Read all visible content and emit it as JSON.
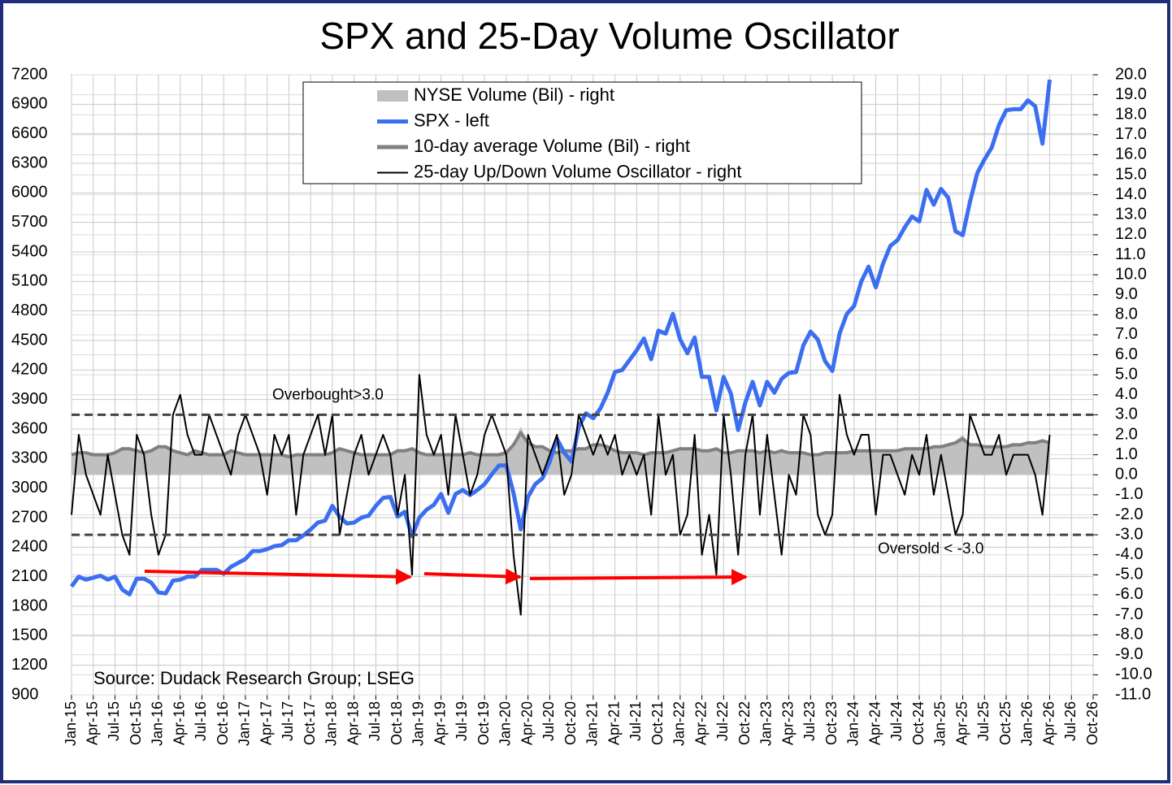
{
  "chart_data": {
    "type": "line",
    "title": "SPX and 25-Day Volume Oscillator",
    "source": "Source: Dudack Research Group;  LSEG",
    "xlim": [
      "2015-01",
      "2026-10"
    ],
    "xticks": [
      {
        "value": "2015-01",
        "label": "Jan-15"
      },
      {
        "value": "2015-04",
        "label": "Apr-15"
      },
      {
        "value": "2015-07",
        "label": "Jul-15"
      },
      {
        "value": "2015-10",
        "label": "Oct-15"
      },
      {
        "value": "2016-01",
        "label": "Jan-16"
      },
      {
        "value": "2016-04",
        "label": "Apr-16"
      },
      {
        "value": "2016-07",
        "label": "Jul-16"
      },
      {
        "value": "2016-10",
        "label": "Oct-16"
      },
      {
        "value": "2017-01",
        "label": "Jan-17"
      },
      {
        "value": "2017-04",
        "label": "Apr-17"
      },
      {
        "value": "2017-07",
        "label": "Jul-17"
      },
      {
        "value": "2017-10",
        "label": "Oct-17"
      },
      {
        "value": "2018-01",
        "label": "Jan-18"
      },
      {
        "value": "2018-04",
        "label": "Apr-18"
      },
      {
        "value": "2018-07",
        "label": "Jul-18"
      },
      {
        "value": "2018-10",
        "label": "Oct-18"
      },
      {
        "value": "2019-01",
        "label": "Jan-19"
      },
      {
        "value": "2019-04",
        "label": "Apr-19"
      },
      {
        "value": "2019-07",
        "label": "Jul-19"
      },
      {
        "value": "2019-10",
        "label": "Oct-19"
      },
      {
        "value": "2020-01",
        "label": "Jan-20"
      },
      {
        "value": "2020-04",
        "label": "Apr-20"
      },
      {
        "value": "2020-07",
        "label": "Jul-20"
      },
      {
        "value": "2020-10",
        "label": "Oct-20"
      },
      {
        "value": "2021-01",
        "label": "Jan-21"
      },
      {
        "value": "2021-04",
        "label": "Apr-21"
      },
      {
        "value": "2021-07",
        "label": "Jul-21"
      },
      {
        "value": "2021-10",
        "label": "Oct-21"
      },
      {
        "value": "2022-01",
        "label": "Jan-22"
      },
      {
        "value": "2022-04",
        "label": "Apr-22"
      },
      {
        "value": "2022-07",
        "label": "Jul-22"
      },
      {
        "value": "2022-10",
        "label": "Oct-22"
      },
      {
        "value": "2023-01",
        "label": "Jan-23"
      },
      {
        "value": "2023-04",
        "label": "Apr-23"
      },
      {
        "value": "2023-07",
        "label": "Jul-23"
      },
      {
        "value": "2023-10",
        "label": "Oct-23"
      },
      {
        "value": "2024-01",
        "label": "Jan-24"
      },
      {
        "value": "2024-04",
        "label": "Apr-24"
      },
      {
        "value": "2024-07",
        "label": "Jul-24"
      },
      {
        "value": "2024-10",
        "label": "Oct-24"
      },
      {
        "value": "2025-01",
        "label": "Jan-25"
      },
      {
        "value": "2025-04",
        "label": "Apr-25"
      },
      {
        "value": "2025-07",
        "label": "Jul-25"
      },
      {
        "value": "2025-10",
        "label": "Oct-25"
      },
      {
        "value": "2026-01",
        "label": "Jan-26"
      },
      {
        "value": "2026-04",
        "label": "Apr-26"
      },
      {
        "value": "2026-07",
        "label": "Jul-26"
      },
      {
        "value": "2026-10",
        "label": "Oct-26"
      }
    ],
    "ylim": [
      900,
      7200
    ],
    "yticks": [
      900,
      1200,
      1500,
      1800,
      2100,
      2400,
      2700,
      3000,
      3300,
      3600,
      3900,
      4200,
      4500,
      4800,
      5100,
      5400,
      5700,
      6000,
      6300,
      6600,
      6900,
      7200
    ],
    "y2lim": [
      -11,
      20
    ],
    "y2ticks": [
      {
        "value": 20,
        "label": "20.0"
      },
      {
        "value": 19,
        "label": "19.0"
      },
      {
        "value": 18,
        "label": "18.0"
      },
      {
        "value": 17,
        "label": "17.0"
      },
      {
        "value": 16,
        "label": "16.0"
      },
      {
        "value": 15,
        "label": "15.0"
      },
      {
        "value": 14,
        "label": "14.0"
      },
      {
        "value": 13,
        "label": "13.0"
      },
      {
        "value": 12,
        "label": "12.0"
      },
      {
        "value": 11,
        "label": "11.0"
      },
      {
        "value": 10,
        "label": "10.0"
      },
      {
        "value": 9,
        "label": "9.0"
      },
      {
        "value": 8,
        "label": "8.0"
      },
      {
        "value": 7,
        "label": "7.0"
      },
      {
        "value": 6,
        "label": "6.0"
      },
      {
        "value": 5,
        "label": "5.0"
      },
      {
        "value": 4,
        "label": "4.0"
      },
      {
        "value": 3,
        "label": "3.0"
      },
      {
        "value": 2,
        "label": "2.0"
      },
      {
        "value": 1,
        "label": "1.0"
      },
      {
        "value": 0,
        "label": "0.0"
      },
      {
        "value": -1,
        "label": "-1.0"
      },
      {
        "value": -2,
        "label": "-2.0"
      },
      {
        "value": -3,
        "label": "-3.0"
      },
      {
        "value": -4,
        "label": "-4.0"
      },
      {
        "value": -5,
        "label": "-5.0"
      },
      {
        "value": -6,
        "label": "-6.0"
      },
      {
        "value": -7,
        "label": "-7.0"
      },
      {
        "value": -8,
        "label": "-8.0"
      },
      {
        "value": -9,
        "label": "-9.0"
      },
      {
        "value": -10,
        "label": "-10.0"
      },
      {
        "value": -11,
        "label": "-11.0"
      }
    ],
    "grid": true,
    "reference_lines": [
      {
        "value": 3,
        "label": "Overbought>3.0"
      },
      {
        "value": -3,
        "label": "Oversold < -3.0"
      }
    ],
    "x": [
      "2015-01",
      "2015-02",
      "2015-03",
      "2015-04",
      "2015-05",
      "2015-06",
      "2015-07",
      "2015-08",
      "2015-09",
      "2015-10",
      "2015-11",
      "2015-12",
      "2016-01",
      "2016-02",
      "2016-03",
      "2016-04",
      "2016-05",
      "2016-06",
      "2016-07",
      "2016-08",
      "2016-09",
      "2016-10",
      "2016-11",
      "2016-12",
      "2017-01",
      "2017-02",
      "2017-03",
      "2017-04",
      "2017-05",
      "2017-06",
      "2017-07",
      "2017-08",
      "2017-09",
      "2017-10",
      "2017-11",
      "2017-12",
      "2018-01",
      "2018-02",
      "2018-03",
      "2018-04",
      "2018-05",
      "2018-06",
      "2018-07",
      "2018-08",
      "2018-09",
      "2018-10",
      "2018-11",
      "2018-12",
      "2019-01",
      "2019-02",
      "2019-03",
      "2019-04",
      "2019-05",
      "2019-06",
      "2019-07",
      "2019-08",
      "2019-09",
      "2019-10",
      "2019-11",
      "2019-12",
      "2020-01",
      "2020-02",
      "2020-03",
      "2020-04",
      "2020-05",
      "2020-06",
      "2020-07",
      "2020-08",
      "2020-09",
      "2020-10",
      "2020-11",
      "2020-12",
      "2021-01",
      "2021-02",
      "2021-03",
      "2021-04",
      "2021-05",
      "2021-06",
      "2021-07",
      "2021-08",
      "2021-09",
      "2021-10",
      "2021-11",
      "2021-12",
      "2022-01",
      "2022-02",
      "2022-03",
      "2022-04",
      "2022-05",
      "2022-06",
      "2022-07",
      "2022-08",
      "2022-09",
      "2022-10",
      "2022-11",
      "2022-12",
      "2023-01",
      "2023-02",
      "2023-03",
      "2023-04",
      "2023-05",
      "2023-06",
      "2023-07",
      "2023-08",
      "2023-09",
      "2023-10",
      "2023-11",
      "2023-12",
      "2024-01",
      "2024-02",
      "2024-03",
      "2024-04",
      "2024-05",
      "2024-06",
      "2024-07",
      "2024-08",
      "2024-09",
      "2024-10",
      "2024-11",
      "2024-12",
      "2025-01",
      "2025-02",
      "2025-03",
      "2025-04",
      "2025-05",
      "2025-06",
      "2025-07",
      "2025-08",
      "2025-09",
      "2025-10",
      "2025-11",
      "2025-12",
      "2026-01",
      "2026-02",
      "2026-03",
      "2026-04"
    ],
    "series": [
      {
        "name": "NYSE Volume (Bil) - right",
        "color": "#c0c0c0",
        "axis": "y2",
        "kind": "area",
        "values": [
          1.1,
          1.1,
          1.1,
          1.1,
          1.0,
          1.1,
          1.1,
          1.4,
          1.3,
          1.2,
          1.1,
          1.3,
          1.5,
          1.4,
          1.2,
          1.1,
          1.0,
          1.3,
          1.1,
          1.0,
          1.1,
          1.0,
          1.3,
          1.1,
          1.0,
          1.0,
          1.1,
          1.0,
          1.0,
          1.1,
          0.9,
          1.0,
          1.0,
          1.0,
          1.1,
          1.0,
          1.2,
          1.4,
          1.2,
          1.1,
          1.0,
          1.1,
          1.0,
          1.0,
          1.0,
          1.3,
          1.2,
          1.4,
          1.1,
          1.0,
          1.1,
          1.0,
          1.1,
          1.0,
          1.0,
          1.2,
          1.0,
          1.0,
          1.0,
          1.1,
          1.2,
          1.6,
          2.4,
          1.6,
          1.4,
          1.5,
          1.2,
          1.1,
          1.3,
          1.2,
          1.4,
          1.3,
          1.6,
          1.5,
          1.4,
          1.2,
          1.1,
          1.1,
          1.1,
          1.0,
          1.1,
          1.1,
          1.2,
          1.2,
          1.4,
          1.3,
          1.3,
          1.2,
          1.3,
          1.3,
          1.1,
          1.1,
          1.2,
          1.2,
          1.2,
          1.1,
          1.2,
          1.1,
          1.3,
          1.1,
          1.1,
          1.1,
          1.0,
          1.0,
          1.1,
          1.2,
          1.1,
          1.2,
          1.2,
          1.2,
          1.2,
          1.2,
          1.2,
          1.2,
          1.3,
          1.3,
          1.3,
          1.3,
          1.4,
          1.4,
          1.5,
          1.5,
          1.7,
          2.0,
          1.5,
          1.5,
          1.4,
          1.4,
          1.4,
          1.5,
          1.6,
          1.5,
          1.7,
          1.6,
          1.8,
          1.6
        ]
      },
      {
        "name": "SPX - left",
        "color": "#3b6ff0",
        "axis": "y",
        "kind": "line",
        "values": [
          2000,
          2100,
          2070,
          2090,
          2110,
          2070,
          2100,
          1970,
          1920,
          2080,
          2080,
          2040,
          1940,
          1930,
          2060,
          2070,
          2100,
          2100,
          2170,
          2170,
          2170,
          2130,
          2200,
          2240,
          2280,
          2360,
          2360,
          2380,
          2410,
          2420,
          2470,
          2470,
          2520,
          2580,
          2650,
          2670,
          2820,
          2710,
          2640,
          2650,
          2700,
          2720,
          2820,
          2900,
          2910,
          2710,
          2760,
          2510,
          2700,
          2780,
          2830,
          2940,
          2750,
          2940,
          2980,
          2930,
          2980,
          3040,
          3140,
          3230,
          3230,
          2950,
          2580,
          2910,
          3040,
          3100,
          3270,
          3500,
          3360,
          3270,
          3620,
          3760,
          3710,
          3810,
          3970,
          4180,
          4200,
          4300,
          4400,
          4520,
          4310,
          4600,
          4570,
          4770,
          4510,
          4370,
          4530,
          4130,
          4130,
          3790,
          4130,
          3960,
          3590,
          3870,
          4080,
          3840,
          4080,
          3970,
          4110,
          4170,
          4180,
          4450,
          4590,
          4510,
          4290,
          4190,
          4570,
          4770,
          4850,
          5100,
          5250,
          5040,
          5280,
          5460,
          5520,
          5650,
          5760,
          5710,
          6030,
          5880,
          6040,
          5950,
          5610,
          5570,
          5910,
          6200,
          6340,
          6460,
          6690,
          6840,
          6850,
          6850,
          6940,
          6880,
          6500,
          7150
        ]
      },
      {
        "name": "10-day average Volume (Bil) - right",
        "color": "#808080",
        "axis": "y2",
        "kind": "line",
        "values": [
          1.0,
          1.1,
          1.1,
          1.0,
          1.0,
          1.0,
          1.1,
          1.3,
          1.3,
          1.2,
          1.1,
          1.2,
          1.4,
          1.4,
          1.2,
          1.1,
          1.0,
          1.2,
          1.1,
          1.0,
          1.0,
          1.0,
          1.2,
          1.1,
          1.0,
          1.0,
          1.0,
          1.0,
          1.0,
          1.0,
          0.9,
          1.0,
          1.0,
          1.0,
          1.0,
          1.0,
          1.1,
          1.3,
          1.2,
          1.1,
          1.0,
          1.0,
          1.0,
          1.0,
          1.0,
          1.2,
          1.2,
          1.3,
          1.1,
          1.0,
          1.0,
          1.0,
          1.0,
          1.0,
          1.0,
          1.1,
          1.0,
          1.0,
          1.0,
          1.0,
          1.1,
          1.5,
          2.1,
          1.6,
          1.4,
          1.4,
          1.2,
          1.1,
          1.2,
          1.2,
          1.3,
          1.3,
          1.5,
          1.5,
          1.4,
          1.2,
          1.1,
          1.1,
          1.1,
          1.0,
          1.1,
          1.1,
          1.1,
          1.2,
          1.3,
          1.3,
          1.3,
          1.2,
          1.2,
          1.3,
          1.1,
          1.1,
          1.2,
          1.2,
          1.2,
          1.1,
          1.2,
          1.1,
          1.2,
          1.1,
          1.1,
          1.1,
          1.0,
          1.0,
          1.1,
          1.1,
          1.1,
          1.1,
          1.2,
          1.2,
          1.2,
          1.2,
          1.2,
          1.2,
          1.2,
          1.3,
          1.3,
          1.3,
          1.3,
          1.4,
          1.4,
          1.5,
          1.6,
          1.8,
          1.5,
          1.5,
          1.4,
          1.4,
          1.4,
          1.4,
          1.5,
          1.5,
          1.6,
          1.6,
          1.7,
          1.6
        ]
      },
      {
        "name": "25-day Up/Down Volume Oscillator - right",
        "color": "#000000",
        "axis": "y2",
        "kind": "line",
        "values": [
          -2,
          2,
          0,
          -1,
          -2,
          1,
          -1,
          -3,
          -4,
          2,
          1,
          -2,
          -4,
          -3,
          3,
          4,
          2,
          1,
          1,
          3,
          2,
          1,
          0,
          2,
          3,
          2,
          1,
          -1,
          2,
          1,
          2,
          -2,
          1,
          2,
          3,
          1,
          3,
          -3,
          -1,
          1,
          2,
          0,
          1,
          2,
          1,
          -2,
          0,
          -5,
          5,
          2,
          1,
          2,
          -1,
          3,
          1,
          -1,
          0,
          2,
          3,
          2,
          1,
          -4,
          -7,
          2,
          1,
          0,
          1,
          2,
          -1,
          0,
          3,
          2,
          1,
          2,
          1,
          2,
          0,
          1,
          0,
          1,
          -2,
          3,
          0,
          1,
          -3,
          -2,
          2,
          -4,
          -2,
          -5,
          3,
          0,
          -4,
          1,
          3,
          -2,
          2,
          -1,
          -4,
          0,
          -1,
          3,
          2,
          -2,
          -3,
          -2,
          4,
          2,
          1,
          2,
          2,
          -2,
          1,
          1,
          0,
          -1,
          1,
          0,
          2,
          -1,
          1,
          -1,
          -3,
          -2,
          3,
          2,
          1,
          1,
          2,
          0,
          1,
          1,
          1,
          0,
          -2,
          2
        ]
      }
    ]
  }
}
